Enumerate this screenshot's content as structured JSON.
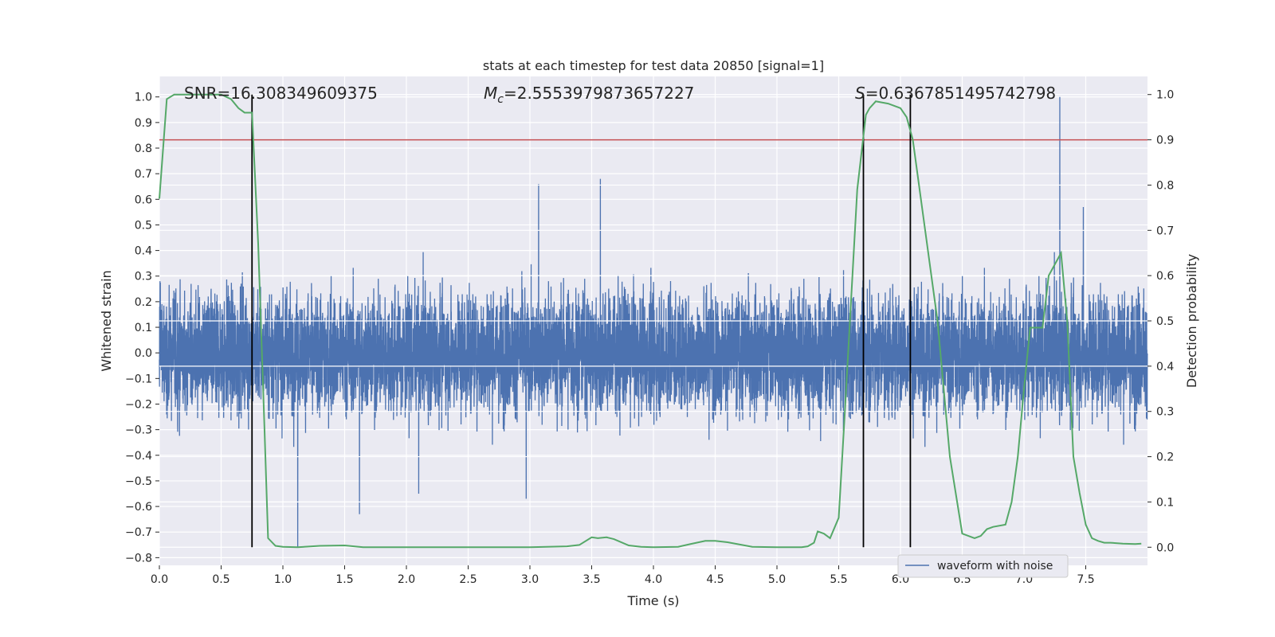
{
  "chart_data": {
    "type": "line",
    "title": "stats at each timestep for test data 20850 [signal=1]",
    "xlabel": "Time (s)",
    "ylabel_left": "Whitened strain",
    "ylabel_right": "Detection probability",
    "xlim": [
      0.0,
      8.0
    ],
    "ylim_left": [
      -0.83,
      1.08
    ],
    "ylim_right": [
      -0.04,
      1.04
    ],
    "x_ticks": [
      "0.0",
      "0.5",
      "1.0",
      "1.5",
      "2.0",
      "2.5",
      "3.0",
      "3.5",
      "4.0",
      "4.5",
      "5.0",
      "5.5",
      "6.0",
      "6.5",
      "7.0",
      "7.5"
    ],
    "x_tick_values": [
      0.0,
      0.5,
      1.0,
      1.5,
      2.0,
      2.5,
      3.0,
      3.5,
      4.0,
      4.5,
      5.0,
      5.5,
      6.0,
      6.5,
      7.0,
      7.5
    ],
    "y_left_ticks": [
      "1.0",
      "0.9",
      "0.8",
      "0.7",
      "0.6",
      "0.5",
      "0.4",
      "0.3",
      "0.2",
      "0.1",
      "0.0",
      "−0.1",
      "−0.2",
      "−0.3",
      "−0.4",
      "−0.5",
      "−0.6",
      "−0.7",
      "−0.8"
    ],
    "y_left_tick_values": [
      1.0,
      0.9,
      0.8,
      0.7,
      0.6,
      0.5,
      0.4,
      0.3,
      0.2,
      0.1,
      0.0,
      -0.1,
      -0.2,
      -0.3,
      -0.4,
      -0.5,
      -0.6,
      -0.7,
      -0.8
    ],
    "y_right_ticks": [
      "1.0",
      "0.9",
      "0.8",
      "0.7",
      "0.6",
      "0.5",
      "0.4",
      "0.3",
      "0.2",
      "0.1",
      "0.0"
    ],
    "y_right_tick_values": [
      1.0,
      0.9,
      0.8,
      0.7,
      0.6,
      0.5,
      0.4,
      0.3,
      0.2,
      0.1,
      0.0
    ],
    "grid": true,
    "legend": {
      "placement": "bottom-right",
      "entries": [
        "waveform with noise"
      ]
    },
    "annotations": {
      "snr": "SNR=16.308349609375",
      "mc_symbol": "M",
      "mc_sub": "c",
      "mc_value": "=2.5553979873657227",
      "s_symbol": "S",
      "s_value": "=0.6367851495742798"
    },
    "threshold_probability": 0.9,
    "vertical_markers_s": [
      0.75,
      5.7,
      6.08
    ],
    "waveform": {
      "name": "waveform with noise",
      "sample_rate_hz": 1024,
      "duration_s": 8.0,
      "typical_range": [
        -0.4,
        0.45
      ],
      "spikes": [
        {
          "t": 7.29,
          "v": 1.0
        },
        {
          "t": 1.12,
          "v": -0.76
        },
        {
          "t": 3.57,
          "v": 0.68
        },
        {
          "t": 3.07,
          "v": 0.66
        },
        {
          "t": 1.62,
          "v": -0.63
        },
        {
          "t": 2.97,
          "v": -0.57
        },
        {
          "t": 2.1,
          "v": -0.55
        },
        {
          "t": 7.48,
          "v": 0.57
        }
      ]
    },
    "series": [
      {
        "name": "",
        "axis": "right",
        "x": [
          0.0,
          0.06,
          0.12,
          0.2,
          0.3,
          0.4,
          0.5,
          0.58,
          0.64,
          0.69,
          0.75,
          0.8,
          0.85,
          0.88,
          0.94,
          1.0,
          1.12,
          1.3,
          1.5,
          1.65,
          2.0,
          2.5,
          3.0,
          3.3,
          3.4,
          3.5,
          3.55,
          3.62,
          3.68,
          3.8,
          3.9,
          4.0,
          4.2,
          4.3,
          4.42,
          4.5,
          4.6,
          4.8,
          5.0,
          5.2,
          5.25,
          5.3,
          5.33,
          5.38,
          5.43,
          5.5,
          5.55,
          5.65,
          5.72,
          5.75,
          5.8,
          5.9,
          5.95,
          6.0,
          6.05,
          6.1,
          6.2,
          6.3,
          6.4,
          6.5,
          6.6,
          6.65,
          6.7,
          6.75,
          6.85,
          6.9,
          6.95,
          7.0,
          7.05,
          7.15,
          7.2,
          7.3,
          7.35,
          7.4,
          7.45,
          7.5,
          7.55,
          7.6,
          7.65,
          7.7,
          7.8,
          7.9,
          7.95
        ],
        "y": [
          0.77,
          0.99,
          1.0,
          1.0,
          1.0,
          1.0,
          1.0,
          0.99,
          0.97,
          0.96,
          0.96,
          0.67,
          0.27,
          0.02,
          0.003,
          0.001,
          0.0,
          0.003,
          0.004,
          0.0,
          0.0,
          0.0,
          0.0,
          0.002,
          0.005,
          0.022,
          0.02,
          0.022,
          0.018,
          0.004,
          0.001,
          0.0,
          0.001,
          0.007,
          0.014,
          0.014,
          0.011,
          0.001,
          0.0,
          0.0,
          0.002,
          0.01,
          0.035,
          0.03,
          0.02,
          0.065,
          0.3,
          0.79,
          0.955,
          0.97,
          0.985,
          0.98,
          0.975,
          0.97,
          0.95,
          0.9,
          0.7,
          0.5,
          0.2,
          0.03,
          0.02,
          0.025,
          0.04,
          0.045,
          0.05,
          0.1,
          0.2,
          0.35,
          0.485,
          0.485,
          0.6,
          0.65,
          0.5,
          0.2,
          0.12,
          0.05,
          0.02,
          0.014,
          0.01,
          0.01,
          0.008,
          0.007,
          0.008
        ]
      }
    ]
  }
}
